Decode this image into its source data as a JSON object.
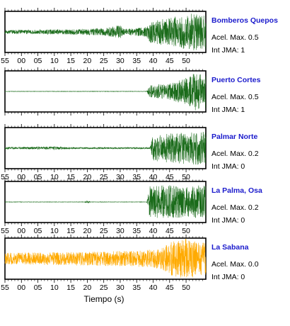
{
  "chart_data": {
    "type": "line",
    "xlabel": "Tiempo (s)",
    "tick_labels": [
      "55",
      "00",
      "05",
      "10",
      "15",
      "20",
      "25",
      "30",
      "35",
      "40",
      "45",
      "50"
    ],
    "colors": {
      "normal_trace": "#1a6b1a",
      "highlight_trace": "#ffaa00",
      "station_name": "#1a1acc"
    },
    "series": [
      {
        "name": "Bomberos Quepos",
        "acel_label": "Acel. Max. 0.5",
        "int_label": "Int JMA: 1",
        "color": "#1a6b1a",
        "tick_labels_below": true,
        "amplitude_envelope": [
          [
            -2,
            0.1
          ],
          [
            10,
            0.12
          ],
          [
            25,
            0.18
          ],
          [
            30,
            0.35
          ],
          [
            31,
            0.15
          ],
          [
            38,
            0.25
          ],
          [
            39,
            0.55
          ],
          [
            44,
            0.7
          ],
          [
            49,
            0.85
          ],
          [
            53,
            1.0
          ],
          [
            54,
            0.9
          ]
        ]
      },
      {
        "name": "Puerto Cortes",
        "acel_label": "Acel. Max. 0.5",
        "int_label": "Int JMA: 1",
        "color": "#1a6b1a",
        "tick_labels_below": false,
        "amplitude_envelope": [
          [
            -2,
            0.01
          ],
          [
            38,
            0.01
          ],
          [
            39,
            0.3
          ],
          [
            44,
            0.4
          ],
          [
            49,
            0.6
          ],
          [
            53,
            1.0
          ],
          [
            54,
            0.9
          ]
        ]
      },
      {
        "name": "Palmar Norte",
        "acel_label": "Acel. Max. 0.2",
        "int_label": "Int JMA: 0",
        "color": "#1a6b1a",
        "tick_labels_below": true,
        "amplitude_envelope": [
          [
            -2,
            0.05
          ],
          [
            10,
            0.08
          ],
          [
            15,
            0.04
          ],
          [
            39,
            0.04
          ],
          [
            40,
            0.65
          ],
          [
            45,
            0.75
          ],
          [
            50,
            0.8
          ],
          [
            54,
            0.85
          ]
        ]
      },
      {
        "name": "La Palma, Osa",
        "acel_label": "Acel. Max. 0.2",
        "int_label": "Int JMA: 0",
        "color": "#1a6b1a",
        "tick_labels_below": true,
        "amplitude_envelope": [
          [
            -2,
            0.01
          ],
          [
            19,
            0.01
          ],
          [
            20,
            0.06
          ],
          [
            21,
            0.01
          ],
          [
            38,
            0.01
          ],
          [
            39,
            0.8
          ],
          [
            45,
            0.85
          ],
          [
            50,
            0.8
          ],
          [
            54,
            0.85
          ]
        ]
      },
      {
        "name": "La Sabana",
        "acel_label": "Acel. Max. 0.0",
        "int_label": "Int JMA: 0",
        "color": "#ffaa00",
        "tick_labels_below": true,
        "amplitude_envelope": [
          [
            -2,
            0.3
          ],
          [
            20,
            0.35
          ],
          [
            35,
            0.4
          ],
          [
            42,
            0.5
          ],
          [
            46,
            0.9
          ],
          [
            50,
            1.0
          ],
          [
            54,
            0.9
          ]
        ]
      }
    ]
  }
}
